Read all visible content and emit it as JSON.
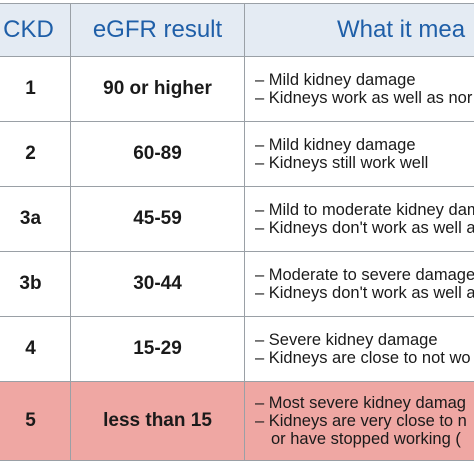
{
  "headers": {
    "stage": "CKD",
    "egfr": "eGFR result",
    "meaning": "What it mea"
  },
  "rows": [
    {
      "stage": "1",
      "egfr": "90 or higher",
      "lines": [
        "– Mild kidney damage",
        "– Kidneys work as well as nor"
      ]
    },
    {
      "stage": "2",
      "egfr": "60-89",
      "lines": [
        "– Mild kidney damage",
        "– Kidneys still work well"
      ]
    },
    {
      "stage": "3a",
      "egfr": "45-59",
      "lines": [
        "– Mild to moderate kidney dam",
        "– Kidneys don't work as well a"
      ]
    },
    {
      "stage": "3b",
      "egfr": "30-44",
      "lines": [
        "– Moderate to severe damage",
        "– Kidneys don't work as well a"
      ]
    },
    {
      "stage": "4",
      "egfr": "15-29",
      "lines": [
        "– Severe kidney damage",
        "– Kidneys are close to not wo"
      ]
    },
    {
      "stage": "5",
      "egfr": "less than 15",
      "lines": [
        "– Most severe kidney damag",
        "– Kidneys are very close to n",
        "or have stopped working ("
      ]
    }
  ],
  "colors": {
    "header_bg": "#e4ebf3",
    "header_text": "#1f5fa8",
    "highlight_row": "#efa7a3",
    "border": "#9aa0a6"
  }
}
